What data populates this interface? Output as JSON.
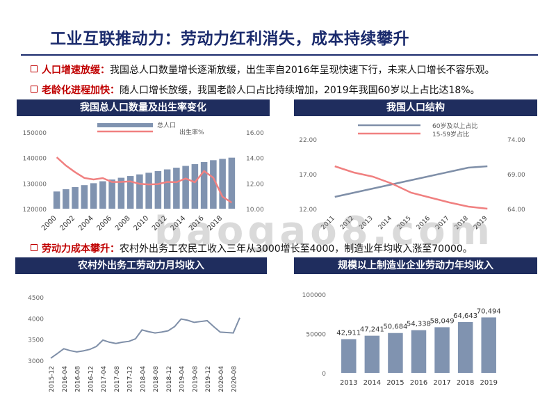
{
  "title": "工业互联推动力：劳动力红利消失，成本持续攀升",
  "bullets": [
    {
      "key": "人口增速放缓：",
      "text": "我国总人口数量增长逐渐放缓，出生率自2016年呈现快速下行，未来人口增长不容乐观。"
    },
    {
      "key": "老龄化进程加快：",
      "text": "随人口增长放缓，我国老龄人口占比持续增加，2019年我国60岁以上占比达18%。"
    },
    {
      "key": "劳动力成本攀升：",
      "text": "农村外出务工农民工收入三年从3000增长至4000，制造业年均收入涨至70000。"
    }
  ],
  "panels": {
    "p1": "我国总人口数量及出生率变化",
    "p2": "我国人口结构",
    "p3": "农村外出务工劳动力月均收入",
    "p4": "规模以上制造业企业劳动力年均收入"
  },
  "watermark": "baogao8.com",
  "colors": {
    "navy": "#1f2d5e",
    "bar": "#8093b0",
    "red": "#f08080",
    "slate": "#7f8fa8",
    "accent": "#c00000"
  },
  "chart_data": [
    {
      "type": "bar",
      "title": "我国总人口数量及出生率变化",
      "x": [
        2000,
        2001,
        2002,
        2003,
        2004,
        2005,
        2006,
        2007,
        2008,
        2009,
        2010,
        2011,
        2012,
        2013,
        2014,
        2015,
        2016,
        2017,
        2018,
        2019
      ],
      "x_tick_labels": [
        "2000",
        "2002",
        "2004",
        "2006",
        "2008",
        "2010",
        "2012",
        "2014",
        "2016",
        "2018"
      ],
      "series": [
        {
          "name": "总人口",
          "type": "bar",
          "axis": "left",
          "values": [
            126743,
            127627,
            128453,
            129227,
            129988,
            130756,
            131448,
            132129,
            132802,
            133450,
            134091,
            134735,
            135404,
            136072,
            136782,
            137462,
            138271,
            139008,
            139538,
            140005
          ]
        },
        {
          "name": "出生率%",
          "type": "line",
          "axis": "right",
          "values": [
            14.03,
            13.38,
            12.86,
            12.41,
            12.29,
            12.4,
            12.09,
            12.1,
            12.14,
            11.95,
            11.9,
            11.93,
            12.1,
            12.08,
            12.37,
            12.07,
            12.95,
            12.43,
            10.94,
            10.48
          ]
        }
      ],
      "ylim_left": [
        120000,
        150000
      ],
      "yticks_left": [
        "120000",
        "130000",
        "140000",
        "150000"
      ],
      "ylim_right": [
        10,
        16
      ],
      "yticks_right": [
        "10.00",
        "12.00",
        "14.00",
        "16.00"
      ],
      "legend": "top-center"
    },
    {
      "type": "line",
      "title": "我国人口结构",
      "categories": [
        "2011",
        "2012",
        "2013",
        "2014",
        "2015",
        "2016",
        "2017",
        "2018",
        "2019"
      ],
      "series": [
        {
          "name": "60岁及以上占比",
          "axis": "left",
          "values": [
            13.7,
            14.3,
            14.9,
            15.5,
            16.1,
            16.7,
            17.3,
            17.9,
            18.1
          ]
        },
        {
          "name": "15-59岁占比",
          "axis": "right",
          "values": [
            70.1,
            69.2,
            68.6,
            67.6,
            66.3,
            65.6,
            64.9,
            64.3,
            64.0
          ]
        }
      ],
      "ylim_left": [
        12,
        22
      ],
      "yticks_left": [
        "12.00",
        "17.00",
        "22.00"
      ],
      "ylim_right": [
        64,
        74
      ],
      "yticks_right": [
        "64.00",
        "69.00",
        "74.00"
      ],
      "legend": "top-right"
    },
    {
      "type": "line",
      "title": "农村外出务工劳动力月均收入",
      "x": [
        "2015-12",
        "2016-02",
        "2016-04",
        "2016-06",
        "2016-08",
        "2016-10",
        "2016-12",
        "2017-02",
        "2017-04",
        "2017-06",
        "2017-08",
        "2017-10",
        "2017-12",
        "2018-02",
        "2018-04",
        "2018-06",
        "2018-08",
        "2018-10",
        "2018-12",
        "2019-02",
        "2019-04",
        "2019-06",
        "2019-08",
        "2019-10",
        "2019-12",
        "2020-02",
        "2020-04",
        "2020-06",
        "2020-08",
        "2020-10"
      ],
      "x_tick_labels": [
        "2015-12",
        "2016-04",
        "2016-08",
        "2016-12",
        "2017-04",
        "2017-08",
        "2017-12",
        "2018-04",
        "2018-08",
        "2018-12",
        "2019-04",
        "2019-08",
        "2019-12",
        "2020-04",
        "2020-08"
      ],
      "series": [
        {
          "name": "月均收入",
          "values": [
            3050,
            3160,
            3275,
            3230,
            3200,
            3225,
            3260,
            3330,
            3480,
            3430,
            3400,
            3430,
            3450,
            3510,
            3720,
            3680,
            3650,
            3670,
            3700,
            3800,
            3980,
            3950,
            3900,
            3920,
            3940,
            3800,
            3670,
            3660,
            3650,
            4010
          ]
        }
      ],
      "ylim": [
        3000,
        4500
      ],
      "yticks": [
        "3000",
        "3500",
        "4000",
        "4500"
      ]
    },
    {
      "type": "bar",
      "title": "规模以上制造业企业劳动力年均收入",
      "categories": [
        "2013",
        "2014",
        "2015",
        "2016",
        "2017",
        "2018",
        "2019"
      ],
      "values": [
        42911,
        47241,
        50684,
        54338,
        58049,
        64643,
        70494
      ],
      "value_labels": [
        "42,911",
        "47,241",
        "50,684",
        "54,338",
        "58,049",
        "64,643",
        "70,494"
      ],
      "ylim": [
        0,
        100000
      ],
      "yticks": [
        "0",
        "50000",
        "100000"
      ]
    }
  ]
}
